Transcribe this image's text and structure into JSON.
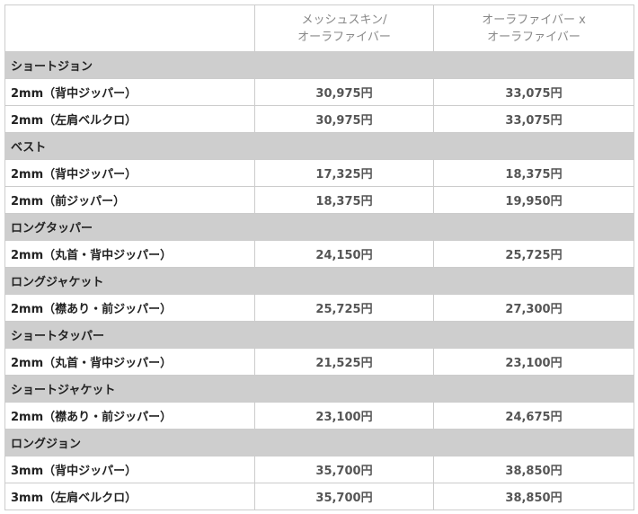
{
  "header": {
    "col1": "",
    "col2_line1": "メッシュスキン/",
    "col2_line2": "オーラファイバー",
    "col3_line1": "オーラファイバー x",
    "col3_line2": "オーラファイバー"
  },
  "groups": [
    {
      "name": "ショートジョン",
      "items": [
        {
          "label": "2mm（背中ジッパー）",
          "price1": "30,975円",
          "price2": "33,075円"
        },
        {
          "label": "2mm（左肩ベルクロ）",
          "price1": "30,975円",
          "price2": "33,075円"
        }
      ]
    },
    {
      "name": "ベスト",
      "items": [
        {
          "label": "2mm（背中ジッパー）",
          "price1": "17,325円",
          "price2": "18,375円"
        },
        {
          "label": "2mm（前ジッパー）",
          "price1": "18,375円",
          "price2": "19,950円"
        }
      ]
    },
    {
      "name": "ロングタッパー",
      "items": [
        {
          "label": "2mm（丸首・背中ジッパー）",
          "price1": "24,150円",
          "price2": "25,725円"
        }
      ]
    },
    {
      "name": "ロングジャケット",
      "items": [
        {
          "label": "2mm（襟あり・前ジッパー）",
          "price1": "25,725円",
          "price2": "27,300円"
        }
      ]
    },
    {
      "name": "ショートタッパー",
      "items": [
        {
          "label": "2mm（丸首・背中ジッパー）",
          "price1": "21,525円",
          "price2": "23,100円"
        }
      ]
    },
    {
      "name": "ショートジャケット",
      "items": [
        {
          "label": "2mm（襟あり・前ジッパー）",
          "price1": "23,100円",
          "price2": "24,675円"
        }
      ]
    },
    {
      "name": "ロングジョン",
      "items": [
        {
          "label": "3mm（背中ジッパー）",
          "price1": "35,700円",
          "price2": "38,850円"
        },
        {
          "label": "3mm（左肩ベルクロ）",
          "price1": "35,700円",
          "price2": "38,850円"
        }
      ]
    }
  ]
}
